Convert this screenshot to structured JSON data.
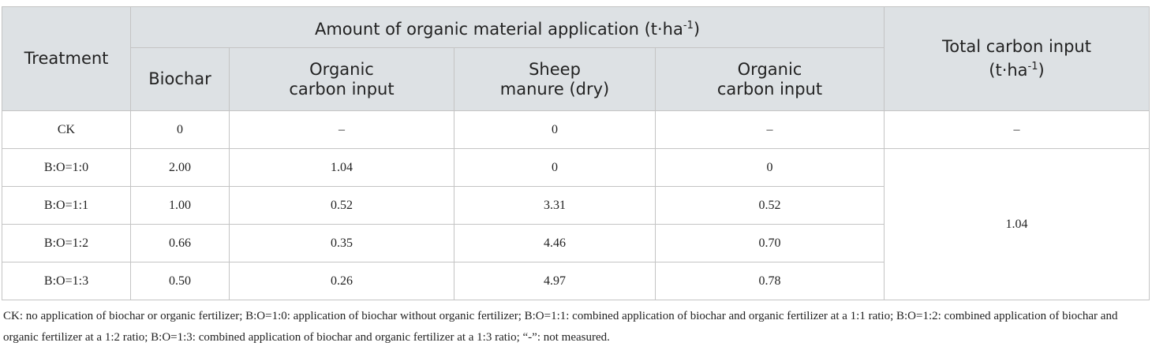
{
  "table": {
    "header": {
      "treatment": "Treatment",
      "group": [
        "Amount of organic material application (t·ha",
        "-1",
        ")"
      ],
      "columns": [
        [
          "Biochar"
        ],
        [
          "Organic",
          "carbon input"
        ],
        [
          "Sheep",
          "manure (dry)"
        ],
        [
          "Organic",
          "carbon input"
        ]
      ],
      "total": [
        "Total carbon input",
        "(t·ha",
        "-1",
        ")"
      ]
    },
    "rows": [
      [
        "CK",
        "0",
        "–",
        "0",
        "–",
        "–"
      ],
      [
        "B:O=1:0",
        "2.00",
        "1.04",
        "0",
        "0",
        "1.04"
      ],
      [
        "B:O=1:1",
        "1.00",
        "0.52",
        "3.31",
        "0.52"
      ],
      [
        "B:O=1:2",
        "0.66",
        "0.35",
        "4.46",
        "0.70"
      ],
      [
        "B:O=1:3",
        "0.50",
        "0.26",
        "4.97",
        "0.78"
      ]
    ]
  },
  "footnote": "CK: no application of biochar or organic fertilizer; B:O=1:0: application of biochar without organic fertilizer; B:O=1:1: combined application of biochar and organic fertilizer at a 1:1 ratio; B:O=1:2: combined application of biochar and organic fertilizer at a 1:2 ratio; B:O=1:3: combined application of biochar and organic fertilizer at a 1:3 ratio; “-”: not measured."
}
